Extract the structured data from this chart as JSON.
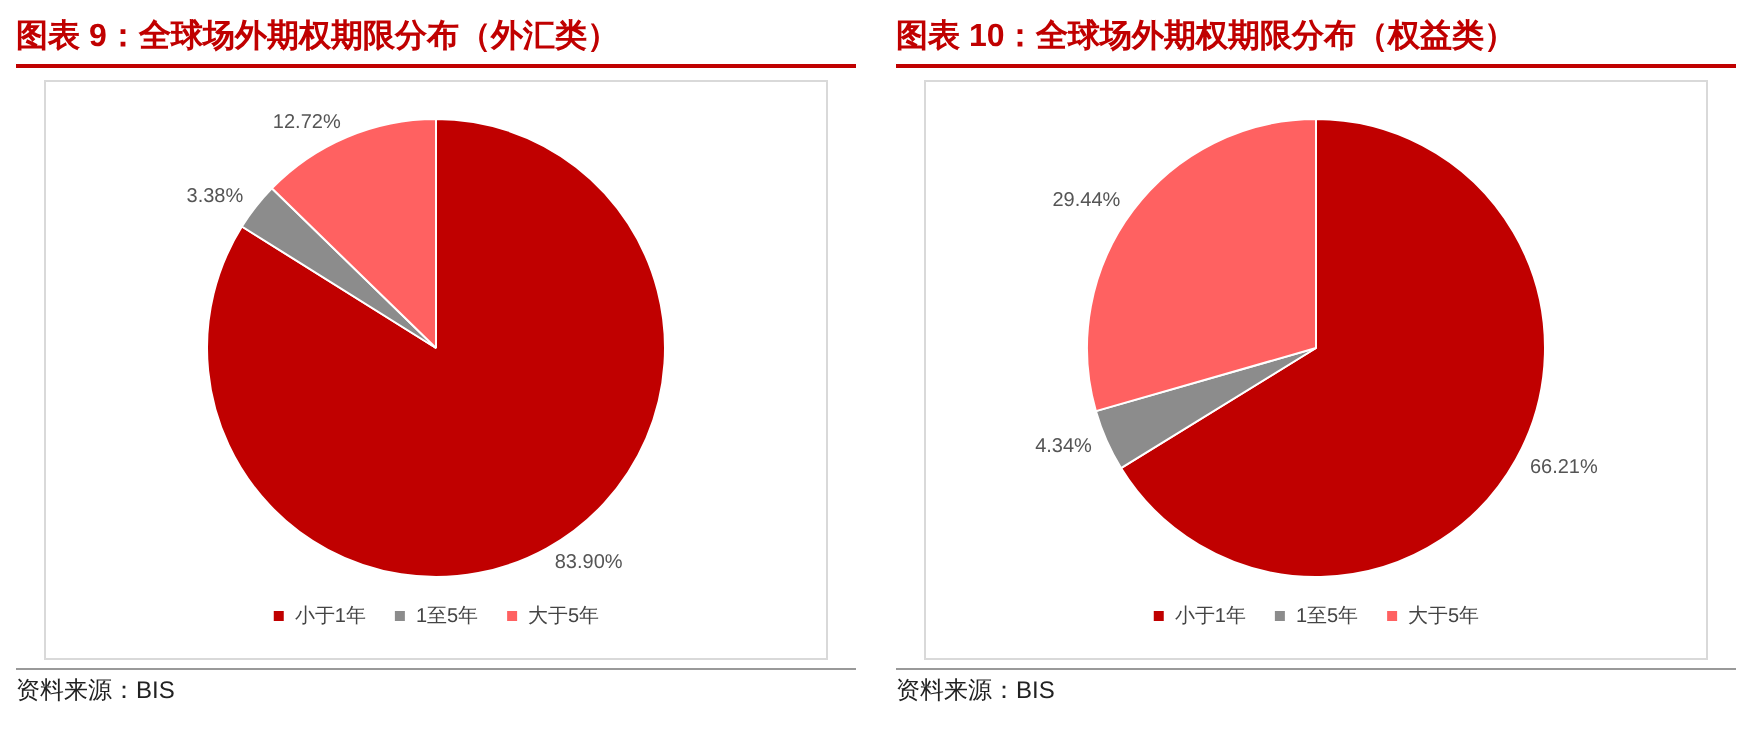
{
  "chart_data": [
    {
      "type": "pie",
      "title": "图表 9：全球场外期权期限分布（外汇类）",
      "categories": [
        "小于1年",
        "1至5年",
        "大于5年"
      ],
      "values": [
        83.9,
        3.38,
        12.72
      ],
      "colors": [
        "#c00000",
        "#8c8c8c",
        "#ff6161"
      ],
      "value_labels": [
        "83.90%",
        "3.38%",
        "12.72%"
      ],
      "legend": "bottom",
      "annotations": [
        "资料来源：BIS"
      ]
    },
    {
      "type": "pie",
      "title": "图表 10：全球场外期权期限分布（权益类）",
      "categories": [
        "小于1年",
        "1至5年",
        "大于5年"
      ],
      "values": [
        66.21,
        4.34,
        29.44
      ],
      "colors": [
        "#c00000",
        "#8c8c8c",
        "#ff6161"
      ],
      "value_labels": [
        "66.21%",
        "4.34%",
        "29.44%"
      ],
      "legend": "bottom",
      "annotations": [
        "资料来源：BIS"
      ]
    }
  ]
}
